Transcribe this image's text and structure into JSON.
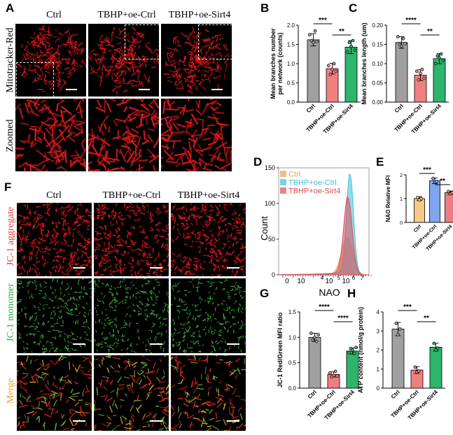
{
  "panels": {
    "A": {
      "letter": "A",
      "columns": [
        "Ctrl",
        "TBHP+oe-Ctrl",
        "TBHP+oe-Sirt4"
      ],
      "rows": [
        "Mitotracker-Red",
        "Zoomed"
      ]
    },
    "F": {
      "letter": "F",
      "columns": [
        "Ctrl",
        "TBHP+oe-Ctrl",
        "TBHP+oe-Sirt4"
      ],
      "rows": [
        {
          "prefix": "JC-1 ",
          "suffix": "aggregate",
          "prefix_color": "#e23b3b",
          "suffix_color": "#e23b3b"
        },
        {
          "prefix": "JC-1 ",
          "suffix": "monomer",
          "prefix_color": "#2fae3b",
          "suffix_color": "#2fae3b"
        },
        {
          "prefix": "Merge",
          "suffix": "",
          "prefix_color": "#e8a12a",
          "suffix_color": "#e8a12a"
        }
      ]
    },
    "B": {
      "letter": "B"
    },
    "C": {
      "letter": "C"
    },
    "D": {
      "letter": "D"
    },
    "E": {
      "letter": "E"
    },
    "G": {
      "letter": "G"
    },
    "H": {
      "letter": "H"
    }
  },
  "colors": {
    "ctrl": "#a0a0a0",
    "tbhp_ctrl": "#f08080",
    "tbhp_sirt4": "#2cb56b",
    "e_ctrl": "#f6c98a",
    "e_tbhp_ctrl": "#7fa6ef",
    "e_tbhp_sirt4": "#ef7b82",
    "d_ctrl": "#e5a45a",
    "d_tbhp_ctrl": "#3cc1dd",
    "d_tbhp_sirt4": "#e24b5a",
    "red_micro": "#e01818",
    "green_micro": "#3cae3c"
  },
  "chart_data": [
    {
      "id": "B",
      "type": "bar",
      "categories": [
        "Ctrl",
        "TBHP+oe-Ctrl",
        "TBHP+oe-Sirt4"
      ],
      "values": [
        1.62,
        0.87,
        1.43
      ],
      "errors": [
        0.16,
        0.14,
        0.17
      ],
      "points": [
        [
          1.75,
          1.6,
          1.55,
          1.85,
          1.58
        ],
        [
          0.95,
          0.72,
          0.85,
          1.0,
          0.8
        ],
        [
          1.3,
          1.55,
          1.45,
          1.6,
          1.35
        ]
      ],
      "ylabel": "Mean branches number\nper network (counts)",
      "ylim": [
        0,
        2.0
      ],
      "yticks": [
        "0.0",
        "0.5",
        "1.0",
        "1.5",
        "2.0"
      ],
      "significance": [
        {
          "label": "***",
          "from": 0,
          "to": 1
        },
        {
          "label": "**",
          "from": 1,
          "to": 2
        }
      ]
    },
    {
      "id": "C",
      "type": "bar",
      "categories": [
        "Ctrl",
        "TBHP+oe-Ctrl",
        "TBHP+oe-Sirt4"
      ],
      "values": [
        0.155,
        0.07,
        0.113
      ],
      "errors": [
        0.015,
        0.014,
        0.013
      ],
      "points": [
        [
          0.17,
          0.15,
          0.145,
          0.165,
          0.152
        ],
        [
          0.08,
          0.058,
          0.075,
          0.085,
          0.062
        ],
        [
          0.1,
          0.12,
          0.115,
          0.125,
          0.108
        ]
      ],
      "ylabel": "Mean branches length (um)",
      "ylim": [
        0,
        0.2
      ],
      "yticks": [
        "0.00",
        "0.05",
        "0.10",
        "0.15",
        "0.20"
      ],
      "significance": [
        {
          "label": "****",
          "from": 0,
          "to": 1
        },
        {
          "label": "**",
          "from": 1,
          "to": 2
        }
      ]
    },
    {
      "id": "D",
      "type": "area",
      "xlabel": "NAO",
      "ylabel": "Count",
      "ylim": [
        0,
        150
      ],
      "yticks": [
        "0",
        "50",
        "100",
        "150"
      ],
      "xticks": [
        "0",
        "10",
        "4",
        "10",
        "5",
        "10",
        "6",
        "7"
      ],
      "legend": [
        "Ctrl",
        "TBHP+oe-Ctrl",
        "TBHP+oe-Sirt4"
      ],
      "series": [
        {
          "name": "Ctrl",
          "peak": 52
        },
        {
          "name": "TBHP+oe-Ctrl",
          "peak": 140
        },
        {
          "name": "TBHP+oe-Sirt4",
          "peak": 108
        }
      ]
    },
    {
      "id": "E",
      "type": "bar",
      "categories": [
        "Ctrl",
        "TBHP+oe-Ctrl",
        "TBHP+oe-Sirt4"
      ],
      "values": [
        1.0,
        1.75,
        1.25
      ],
      "errors": [
        0.08,
        0.12,
        0.07
      ],
      "points": [
        [
          1.05,
          0.95,
          1.0
        ],
        [
          1.85,
          1.7,
          1.72
        ],
        [
          1.3,
          1.2,
          1.25
        ]
      ],
      "ylabel": "NAO Relative MFI",
      "ylim": [
        0,
        2.0
      ],
      "yticks": [
        "0",
        "1",
        "2"
      ],
      "significance": [
        {
          "label": "***",
          "from": 0,
          "to": 1
        },
        {
          "label": "**",
          "from": 1,
          "to": 2
        }
      ]
    },
    {
      "id": "G",
      "type": "bar",
      "categories": [
        "Ctrl",
        "TBHP+oe-Ctrl",
        "TBHP+oe-Sirt4"
      ],
      "values": [
        1.0,
        0.27,
        0.73
      ],
      "errors": [
        0.08,
        0.05,
        0.06
      ],
      "points": [
        [
          1.08,
          0.95,
          1.0,
          0.92,
          1.05
        ],
        [
          0.3,
          0.22,
          0.25,
          0.33,
          0.24
        ],
        [
          0.7,
          0.78,
          0.75,
          0.68,
          0.8
        ]
      ],
      "ylabel": "JC-1 Red/Green MFI ratio",
      "ylim": [
        0,
        1.5
      ],
      "yticks": [
        "0.0",
        "0.5",
        "1.0",
        "1.5"
      ],
      "significance": [
        {
          "label": "****",
          "from": 0,
          "to": 1
        },
        {
          "label": "****",
          "from": 1,
          "to": 2
        }
      ]
    },
    {
      "id": "H",
      "type": "bar",
      "categories": [
        "Ctrl",
        "TBHP+oe-Ctrl",
        "TBHP+oe-Sirt4"
      ],
      "values": [
        3.1,
        0.95,
        2.15
      ],
      "errors": [
        0.35,
        0.18,
        0.2
      ],
      "points": [
        [
          3.4,
          2.8,
          3.1
        ],
        [
          1.1,
          0.85,
          0.9
        ],
        [
          2.35,
          2.0,
          2.1
        ]
      ],
      "ylabel": "ATP content (nmol/g protein)",
      "ylim": [
        0,
        4
      ],
      "yticks": [
        "0",
        "1",
        "2",
        "3",
        "4"
      ],
      "significance": [
        {
          "label": "***",
          "from": 0,
          "to": 1
        },
        {
          "label": "**",
          "from": 1,
          "to": 2
        }
      ]
    }
  ]
}
